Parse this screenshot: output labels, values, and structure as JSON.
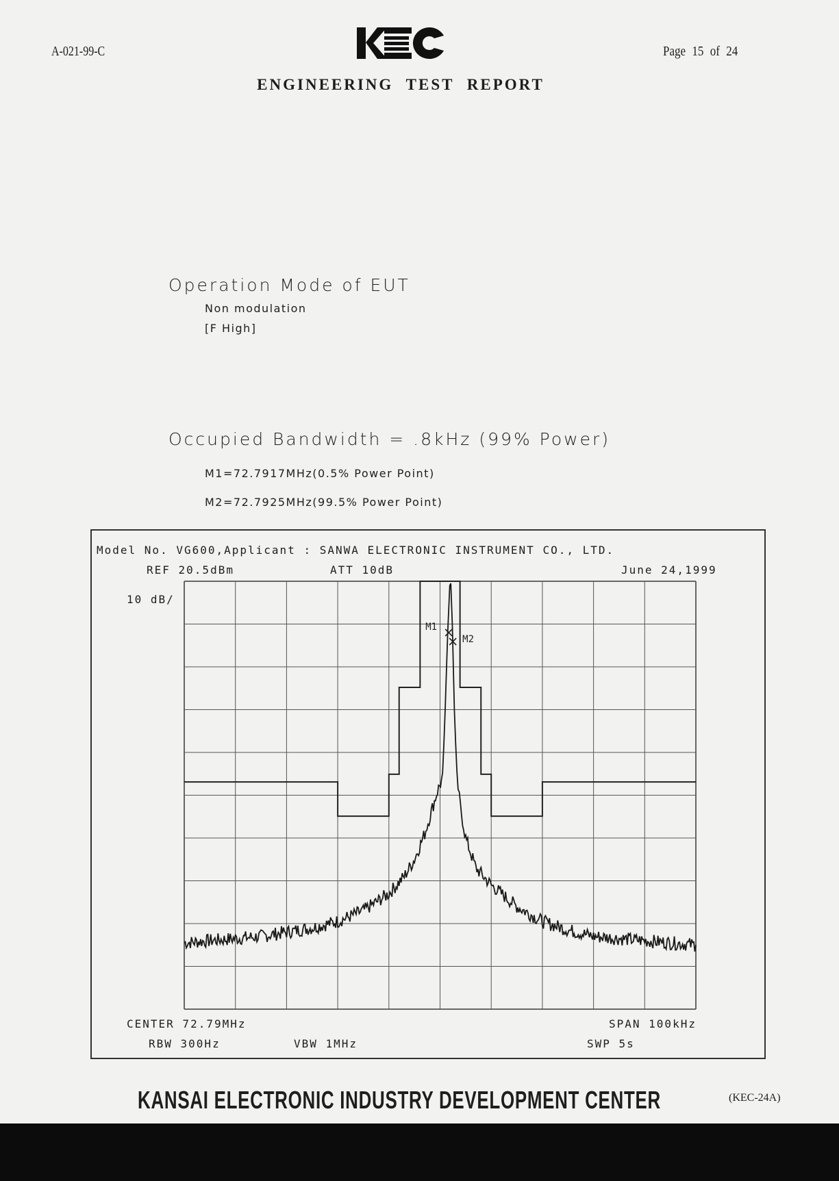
{
  "header": {
    "doc_id": "A-021-99-C",
    "logo_text": "KEC",
    "page": "Page  15  of 24",
    "title": "ENGINEERING TEST REPORT"
  },
  "operation": {
    "title": "Operation Mode of EUT",
    "line1": "Non modulation",
    "line2": "[F High]"
  },
  "bandwidth": {
    "title": "Occupied Bandwidth = .8kHz (99% Power)",
    "m1": "M1=72.7917MHz(0.5% Power Point)",
    "m2": "M2=72.7925MHz(99.5% Power Point)"
  },
  "analyzer": {
    "model_line": "Model No. VG600,Applicant : SANWA ELECTRONIC INSTRUMENT CO., LTD.",
    "ref": "REF 20.5dBm",
    "att": "ATT 10dB",
    "date": "June 24,1999",
    "scale": "10 dB/",
    "center": "CENTER 72.79MHz",
    "span": "SPAN 100kHz",
    "rbw": "RBW 300Hz",
    "vbw": "VBW 1MHz",
    "swp": "SWP 5s"
  },
  "chart_data": {
    "type": "line",
    "xlim": [
      72.74,
      72.84
    ],
    "ylim": [
      -79.5,
      20.5
    ],
    "x_divisions": 10,
    "y_divisions": 10,
    "grid": true,
    "series": [
      {
        "role": "trace",
        "points": [
          [
            72.74,
            -64.0
          ],
          [
            72.745,
            -63.5
          ],
          [
            72.75,
            -63.0
          ],
          [
            72.755,
            -62.5
          ],
          [
            72.76,
            -61.5
          ],
          [
            72.765,
            -60.5
          ],
          [
            72.77,
            -59.0
          ],
          [
            72.775,
            -56.5
          ],
          [
            72.78,
            -52.5
          ],
          [
            72.783,
            -48.5
          ],
          [
            72.785,
            -44.5
          ],
          [
            72.787,
            -38.5
          ],
          [
            72.7885,
            -32.5
          ],
          [
            72.7895,
            -28.5
          ],
          [
            72.7905,
            -25.5
          ],
          [
            72.791,
            -9.5
          ],
          [
            72.7915,
            8.5
          ],
          [
            72.7919,
            19.5
          ],
          [
            72.7921,
            20.0
          ],
          [
            72.7924,
            10.5
          ],
          [
            72.7928,
            -9.5
          ],
          [
            72.7933,
            -25.5
          ],
          [
            72.794,
            -32.5
          ],
          [
            72.795,
            -39.5
          ],
          [
            72.797,
            -46.5
          ],
          [
            72.8,
            -50.5
          ],
          [
            72.805,
            -55.5
          ],
          [
            72.81,
            -59.0
          ],
          [
            72.815,
            -61.0
          ],
          [
            72.82,
            -62.5
          ],
          [
            72.83,
            -63.5
          ],
          [
            72.84,
            -64.5
          ]
        ]
      },
      {
        "role": "limit-mask",
        "points": [
          [
            72.74,
            -26.4
          ],
          [
            72.77,
            -26.4
          ],
          [
            72.77,
            -34.4
          ],
          [
            72.78,
            -34.4
          ],
          [
            72.78,
            -24.6
          ],
          [
            72.782,
            -24.6
          ],
          [
            72.782,
            -4.3
          ],
          [
            72.7861,
            -4.3
          ],
          [
            72.7861,
            20.5
          ],
          [
            72.7939,
            20.5
          ],
          [
            72.7939,
            -4.3
          ],
          [
            72.798,
            -4.3
          ],
          [
            72.798,
            -24.6
          ],
          [
            72.8,
            -24.6
          ],
          [
            72.8,
            -34.4
          ],
          [
            72.81,
            -34.4
          ],
          [
            72.81,
            -26.4
          ],
          [
            72.84,
            -26.4
          ]
        ]
      }
    ],
    "markers": [
      {
        "label": "M1",
        "x": 72.7917,
        "y": 8.5
      },
      {
        "label": "M2",
        "x": 72.7925,
        "y": 6.4
      }
    ]
  }
}
